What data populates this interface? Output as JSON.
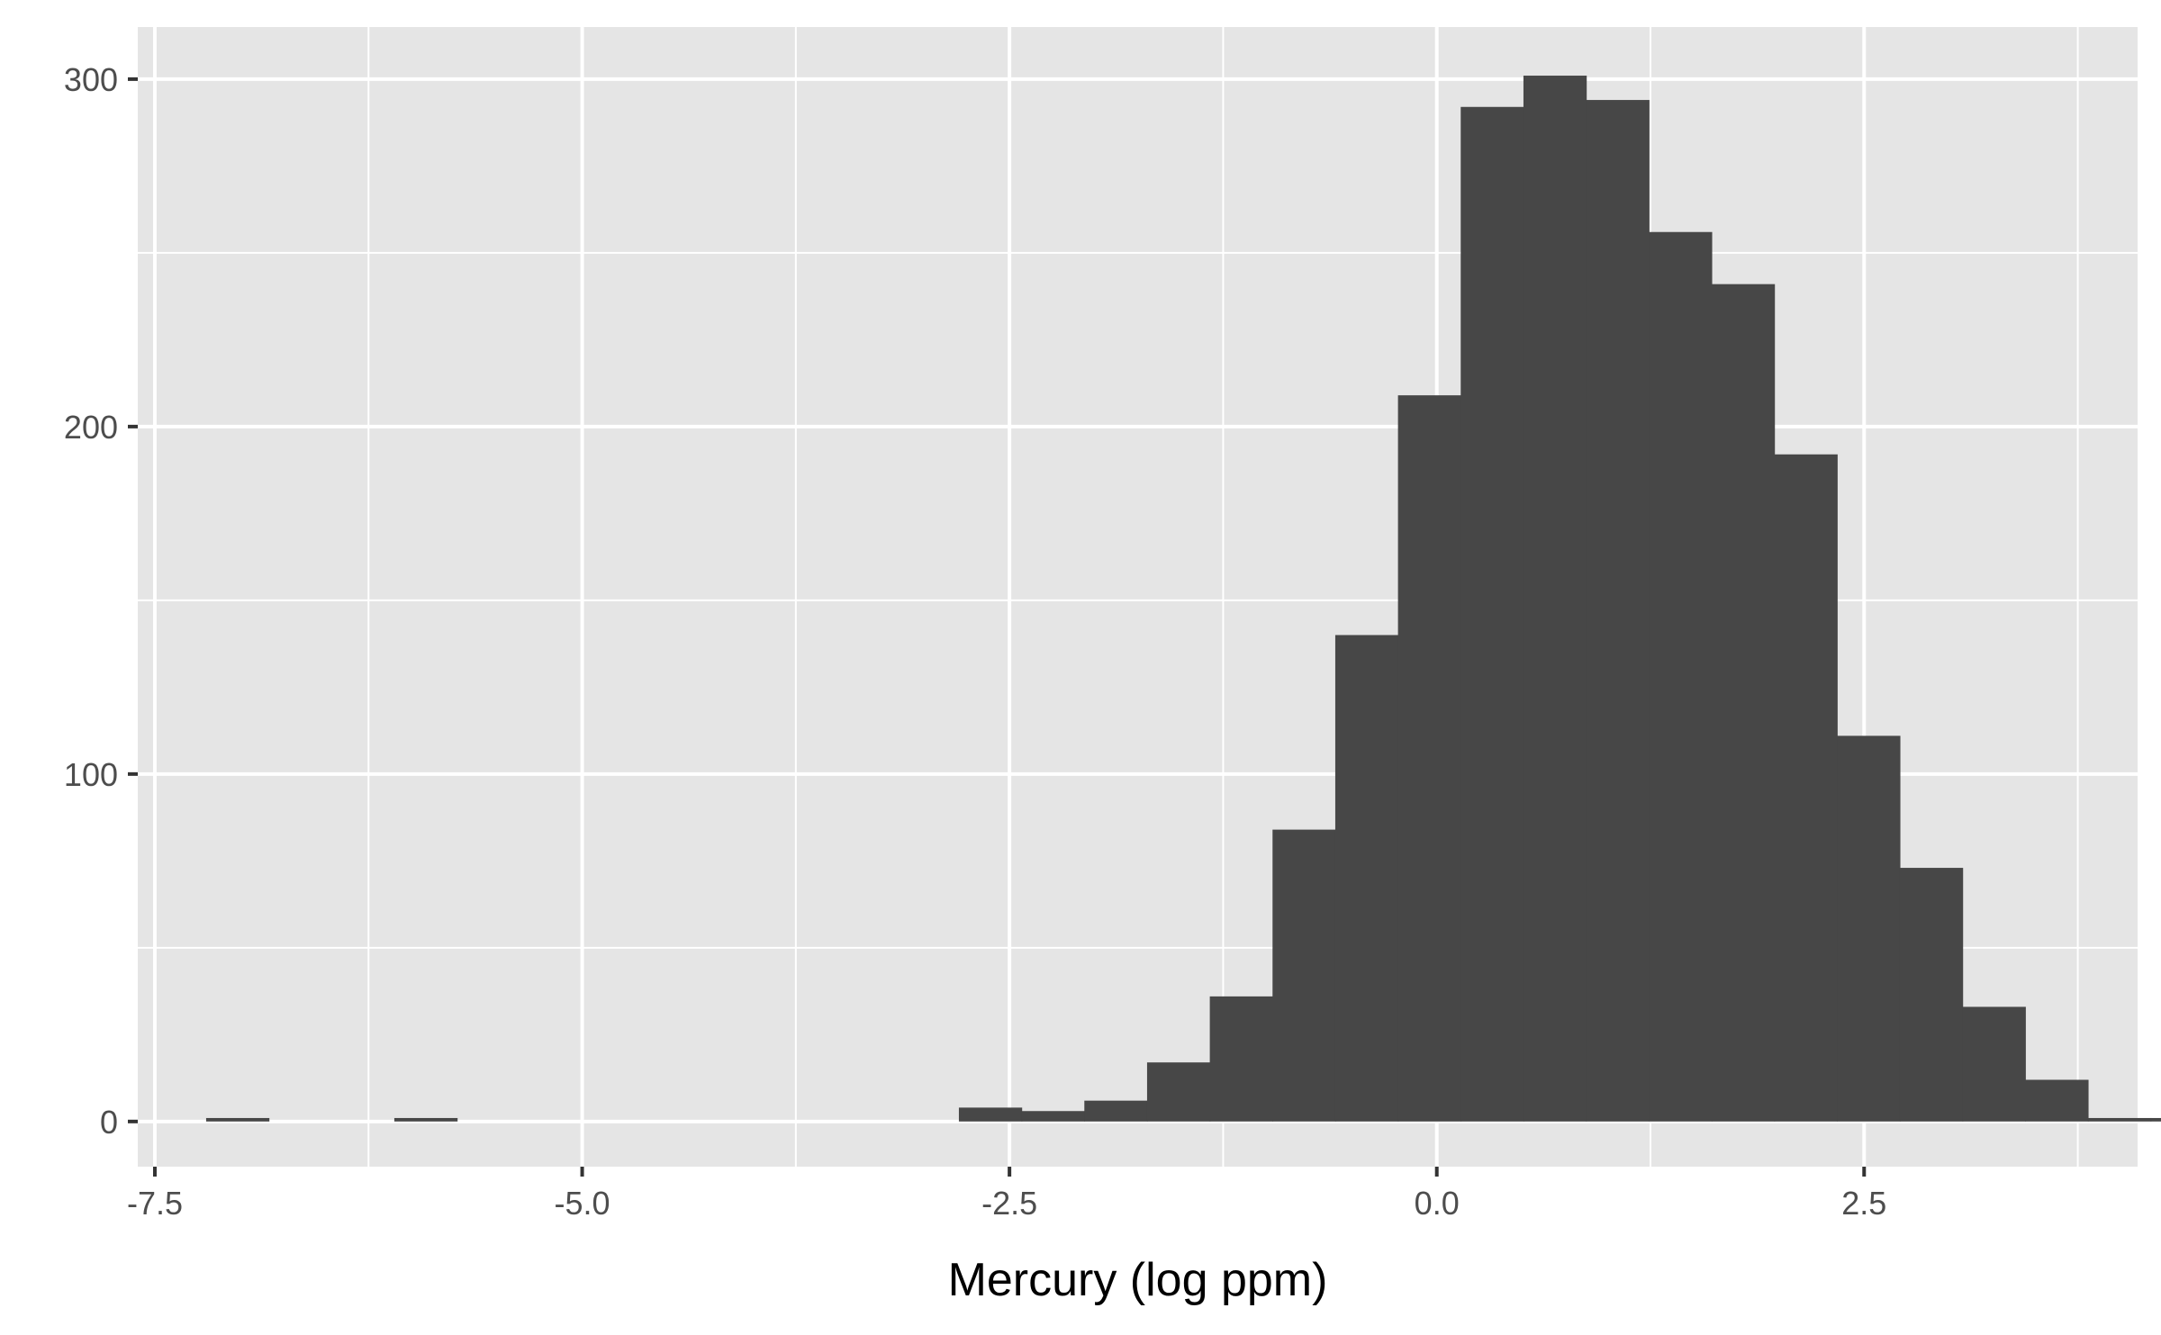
{
  "chart_data": {
    "type": "bar",
    "subtype": "histogram",
    "title": "",
    "xlabel": "Mercury (log ppm)",
    "ylabel": "",
    "xlim": [
      -7.6,
      4.1
    ],
    "ylim": [
      -13,
      315
    ],
    "x_ticks": [
      -7.5,
      -5.0,
      -2.5,
      0.0,
      2.5
    ],
    "x_tick_labels": [
      "-7.5",
      "-5.0",
      "-2.5",
      "0.0",
      "2.5"
    ],
    "y_ticks": [
      0,
      100,
      200,
      300
    ],
    "y_tick_labels": [
      "0",
      "100",
      "200",
      "300"
    ],
    "x_minor_gridlines": [
      -6.25,
      -3.75,
      -1.25,
      1.25,
      3.75
    ],
    "y_minor_gridlines": [
      50,
      150,
      250
    ],
    "grid": true,
    "panel_color": "#e5e5e5",
    "grid_color": "#ffffff",
    "bar_color": "#474747",
    "bins": {
      "start": -7.2,
      "width": 0.367,
      "counts": [
        1,
        0,
        0,
        1,
        0,
        0,
        0,
        0,
        0,
        0,
        0,
        0,
        4,
        3,
        6,
        17,
        36,
        84,
        140,
        209,
        292,
        301,
        294,
        256,
        241,
        192,
        111,
        73,
        33,
        12,
        1,
        1
      ]
    }
  }
}
